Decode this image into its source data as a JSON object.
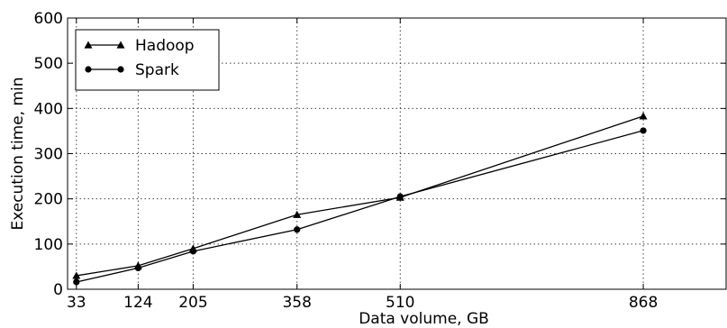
{
  "chart_data": {
    "type": "line",
    "title": "",
    "xlabel": "Data volume, GB",
    "ylabel": "Execution time, min",
    "x": [
      33,
      124,
      205,
      358,
      510,
      868
    ],
    "x_ticks": [
      33,
      124,
      205,
      358,
      510,
      868
    ],
    "xlim": [
      20,
      990
    ],
    "ylim": [
      0,
      600
    ],
    "y_ticks": [
      0,
      100,
      200,
      300,
      400,
      500,
      600
    ],
    "grid": true,
    "legend_position": "top-left",
    "series": [
      {
        "name": "Hadoop",
        "marker": "triangle",
        "color": "#000000",
        "values": [
          30,
          52,
          90,
          165,
          203,
          383
        ]
      },
      {
        "name": "Spark",
        "marker": "circle",
        "color": "#000000",
        "values": [
          16,
          47,
          84,
          132,
          205,
          351
        ]
      }
    ]
  }
}
